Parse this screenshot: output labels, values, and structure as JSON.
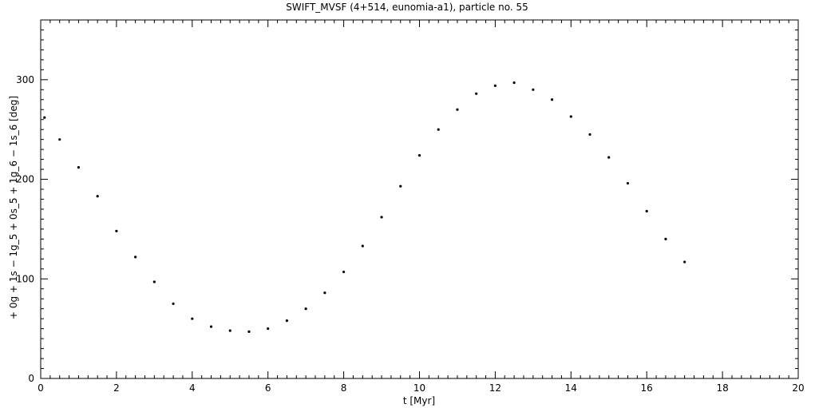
{
  "chart_data": {
    "type": "scatter",
    "title": "SWIFT_MVSF (4+514, eunomia-a1), particle no. 55",
    "xlabel": "t [Myr]",
    "ylabel": "+ 0g + 1s − 1g_5 + 0s_5 + 1g_6 − 1s_6 [deg]",
    "xlim": [
      0,
      20
    ],
    "ylim": [
      0,
      360
    ],
    "x_ticks": [
      "0",
      "2",
      "4",
      "6",
      "8",
      "10",
      "12",
      "14",
      "16",
      "18",
      "20"
    ],
    "y_ticks": [
      "0",
      "100",
      "200",
      "300"
    ],
    "grid": false,
    "series": [
      {
        "color": "#000000",
        "x": [
          0.1,
          0.5,
          1.0,
          1.5,
          2.0,
          2.5,
          3.0,
          3.5,
          4.0,
          4.5,
          5.0,
          5.5,
          6.0,
          6.5,
          7.0,
          7.5,
          8.0,
          8.5,
          9.0,
          9.5,
          10.0,
          10.5,
          11.0,
          11.5,
          12.0,
          12.5,
          13.0,
          13.5,
          14.0,
          14.5,
          15.0,
          15.5,
          16.0,
          16.5,
          17.0
        ],
        "y": [
          262,
          240,
          212,
          183,
          148,
          122,
          97,
          75,
          60,
          52,
          48,
          47,
          50,
          58,
          70,
          86,
          107,
          133,
          162,
          193,
          224,
          250,
          270,
          286,
          294,
          297,
          290,
          280,
          263,
          245,
          222,
          196,
          168,
          140,
          117
        ]
      }
    ]
  }
}
